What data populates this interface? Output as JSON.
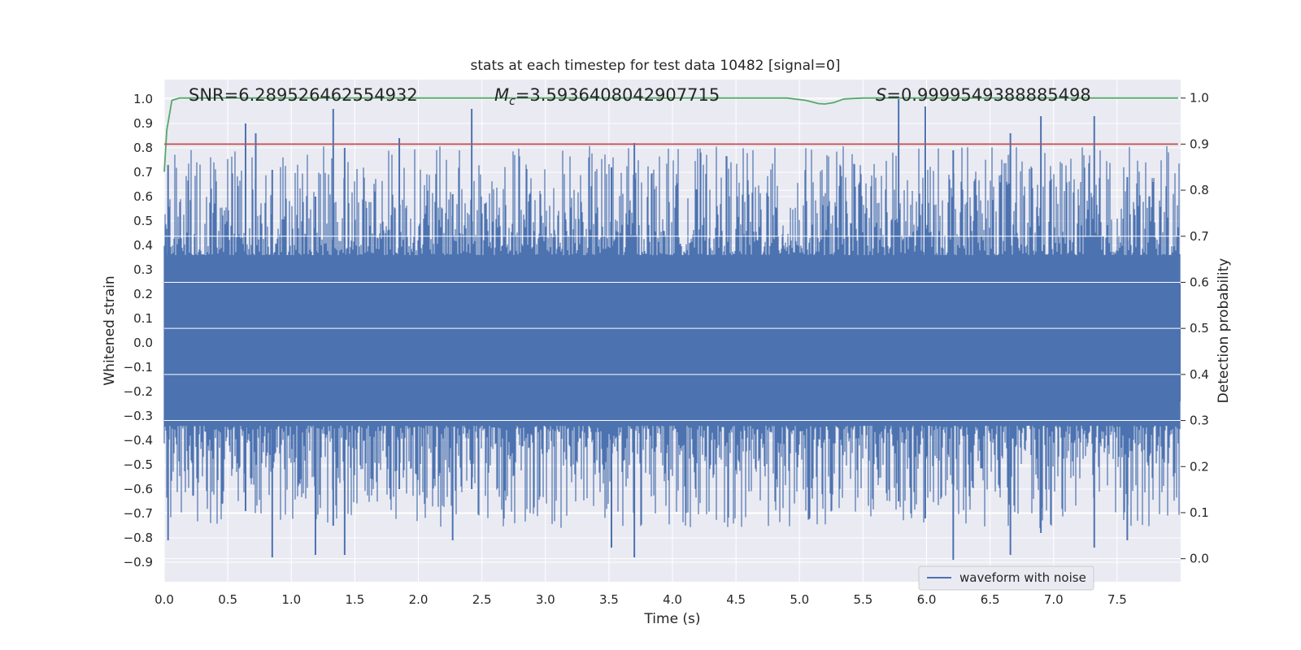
{
  "chart_data": {
    "type": "line",
    "title": "stats at each timestep for test data 10482 [signal=0]",
    "xlabel": "Time (s)",
    "ylabel": "Whitened strain",
    "ylabel_right": "Detection probability",
    "xlim": [
      0.0,
      8.0
    ],
    "ylim": [
      -0.98,
      1.08
    ],
    "ylim_right": [
      -0.05,
      1.04
    ],
    "x_ticks": [
      "0.0",
      "0.5",
      "1.0",
      "1.5",
      "2.0",
      "2.5",
      "3.0",
      "3.5",
      "4.0",
      "4.5",
      "5.0",
      "5.5",
      "6.0",
      "6.5",
      "7.0",
      "7.5"
    ],
    "y_ticks": [
      "1.0",
      "0.9",
      "0.8",
      "0.7",
      "0.6",
      "0.5",
      "0.4",
      "0.3",
      "0.2",
      "0.1",
      "0.0",
      "−0.1",
      "−0.2",
      "−0.3",
      "−0.4",
      "−0.5",
      "−0.6",
      "−0.7",
      "−0.8",
      "−0.9"
    ],
    "y_ticks_right": [
      "1.0",
      "0.9",
      "0.8",
      "0.7",
      "0.6",
      "0.5",
      "0.4",
      "0.3",
      "0.2",
      "0.1",
      "0.0"
    ],
    "grid": true,
    "legend_placement": "bottom-right",
    "annotations": {
      "snr": "SNR=6.289526462554932",
      "mc_symbol": "M",
      "mc_sub": "c",
      "mc_value": "=3.5936408042907715",
      "s_symbol": "S",
      "s_value": "=0.9999549388885498"
    },
    "series": [
      {
        "name": "waveform with noise",
        "axis": "left",
        "color": "#4c72b0",
        "description_values": "dense noise signal approx ±0.45 with spikes to +1.0 and -0.9",
        "spikes": [
          {
            "x": 0.03,
            "top": 0.73,
            "bottom": -0.81
          },
          {
            "x": 0.64,
            "top": 0.9,
            "bottom": -0.69
          },
          {
            "x": 0.72,
            "top": 0.86,
            "bottom": -0.5
          },
          {
            "x": 0.85,
            "top": 0.71,
            "bottom": -0.88
          },
          {
            "x": 1.19,
            "top": 0.6,
            "bottom": -0.87
          },
          {
            "x": 1.33,
            "top": 0.96,
            "bottom": -0.75
          },
          {
            "x": 1.42,
            "top": 0.8,
            "bottom": -0.87
          },
          {
            "x": 1.85,
            "top": 0.84,
            "bottom": -0.6
          },
          {
            "x": 2.27,
            "top": 0.61,
            "bottom": -0.81
          },
          {
            "x": 2.42,
            "top": 0.96,
            "bottom": -0.6
          },
          {
            "x": 3.52,
            "top": 0.72,
            "bottom": -0.84
          },
          {
            "x": 3.7,
            "top": 0.82,
            "bottom": -0.88
          },
          {
            "x": 5.78,
            "top": 1.0,
            "bottom": -0.65
          },
          {
            "x": 5.99,
            "top": 0.97,
            "bottom": -0.72
          },
          {
            "x": 6.21,
            "top": 0.79,
            "bottom": -0.89
          },
          {
            "x": 6.66,
            "top": 0.86,
            "bottom": -0.87
          },
          {
            "x": 6.9,
            "top": 0.93,
            "bottom": -0.78
          },
          {
            "x": 7.32,
            "top": 0.93,
            "bottom": -0.84
          },
          {
            "x": 7.58,
            "top": 0.68,
            "bottom": -0.81
          }
        ]
      },
      {
        "name": "",
        "axis": "right",
        "color": "#55a868",
        "x": [
          0.0,
          0.02,
          0.06,
          0.12,
          0.3,
          1.0,
          2.0,
          3.0,
          4.0,
          4.9,
          5.05,
          5.15,
          5.2,
          5.27,
          5.35,
          5.5,
          6.0,
          7.0,
          7.98
        ],
        "y": [
          0.84,
          0.93,
          0.995,
          1.0,
          1.0,
          1.0,
          1.0,
          1.0,
          1.0,
          1.0,
          0.995,
          0.988,
          0.987,
          0.99,
          0.998,
          1.0,
          1.0,
          1.0,
          1.0
        ]
      },
      {
        "name": "",
        "axis": "right",
        "color": "#c44e52",
        "x": [
          0.0,
          7.98
        ],
        "y": [
          0.9,
          0.9
        ]
      }
    ]
  }
}
